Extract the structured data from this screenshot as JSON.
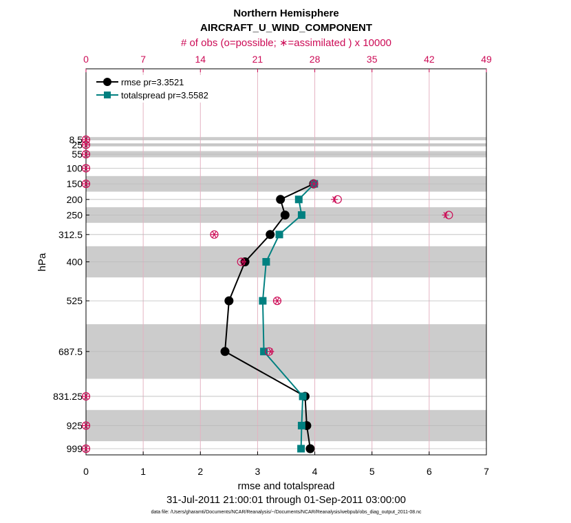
{
  "chart_data": {
    "type": "line",
    "title": "Northern Hemisphere",
    "subtitle": "AIRCRAFT_U_WIND_COMPONENT",
    "top_axis_label": "# of obs (o=possible; ∗=assimilated ) x 10000",
    "xlabel": "rmse and totalspread",
    "ylabel": "hPa",
    "date_range": "31-Jul-2011 21:00:01 through 01-Sep-2011 03:00:00",
    "data_file": "data file: /Users/gharamti/Documents/NCAR/Reanalysis/~/Documents/NCAR/Reanalysis/webpub/obs_diag_output_2011-08.nc",
    "xlim": [
      0,
      7
    ],
    "x_ticks": [
      "0",
      "1",
      "2",
      "3",
      "4",
      "5",
      "6",
      "7"
    ],
    "top_xlim": [
      0,
      49
    ],
    "top_ticks": [
      "0",
      "7",
      "14",
      "21",
      "28",
      "35",
      "42",
      "49"
    ],
    "levels": [
      8.5,
      25,
      55,
      100,
      150,
      200,
      250,
      312.5,
      400,
      525,
      687.5,
      831.25,
      925,
      999
    ],
    "level_labels": [
      "8.5",
      "25",
      "55",
      "100",
      "150",
      "200",
      "250",
      "312.5",
      "400",
      "525",
      "687.5",
      "831.25",
      "925",
      "999"
    ],
    "level_bands": [
      [
        0,
        10
      ],
      [
        20,
        30
      ],
      [
        45,
        65
      ],
      [
        125,
        175
      ],
      [
        225,
        275
      ],
      [
        350,
        450
      ],
      [
        600,
        775
      ],
      [
        875,
        975
      ]
    ],
    "series": [
      {
        "name": "rmse pr=3.3521",
        "color": "#000000",
        "marker": "circle",
        "points": [
          [
            3.98,
            150
          ],
          [
            3.4,
            200
          ],
          [
            3.48,
            250
          ],
          [
            3.22,
            312.5
          ],
          [
            2.78,
            400
          ],
          [
            2.5,
            525
          ],
          [
            2.43,
            687.5
          ],
          [
            3.83,
            831.25
          ],
          [
            3.86,
            925
          ],
          [
            3.92,
            999
          ]
        ]
      },
      {
        "name": "totalspread pr=3.5582",
        "color": "#008080",
        "marker": "square",
        "points": [
          [
            3.99,
            150
          ],
          [
            3.72,
            200
          ],
          [
            3.77,
            250
          ],
          [
            3.38,
            312.5
          ],
          [
            3.15,
            400
          ],
          [
            3.09,
            525
          ],
          [
            3.11,
            687.5
          ],
          [
            3.79,
            831.25
          ],
          [
            3.77,
            925
          ],
          [
            3.76,
            999
          ]
        ]
      }
    ],
    "obs_possible": [
      [
        0,
        8.5
      ],
      [
        0,
        25
      ],
      [
        0,
        55
      ],
      [
        0,
        100
      ],
      [
        0,
        150
      ],
      [
        27.9,
        150
      ],
      [
        30.8,
        200
      ],
      [
        44.4,
        250
      ],
      [
        15.7,
        312.5
      ],
      [
        19.0,
        400
      ],
      [
        23.4,
        525
      ],
      [
        22.4,
        687.5
      ],
      [
        0,
        831.25
      ],
      [
        0,
        925
      ],
      [
        0,
        999
      ]
    ],
    "obs_assimilated": [
      [
        0,
        8.5
      ],
      [
        0,
        25
      ],
      [
        0,
        55
      ],
      [
        0,
        100
      ],
      [
        0,
        150
      ],
      [
        27.9,
        150
      ],
      [
        30.4,
        200
      ],
      [
        44.0,
        250
      ],
      [
        15.7,
        312.5
      ],
      [
        19.2,
        400
      ],
      [
        23.4,
        525
      ],
      [
        22.6,
        687.5
      ],
      [
        0,
        831.25
      ],
      [
        0,
        925
      ],
      [
        0,
        999
      ]
    ],
    "colors": {
      "obs": "#cc0a55",
      "band": "#cccccc",
      "grid": "#e4b2c2"
    }
  }
}
